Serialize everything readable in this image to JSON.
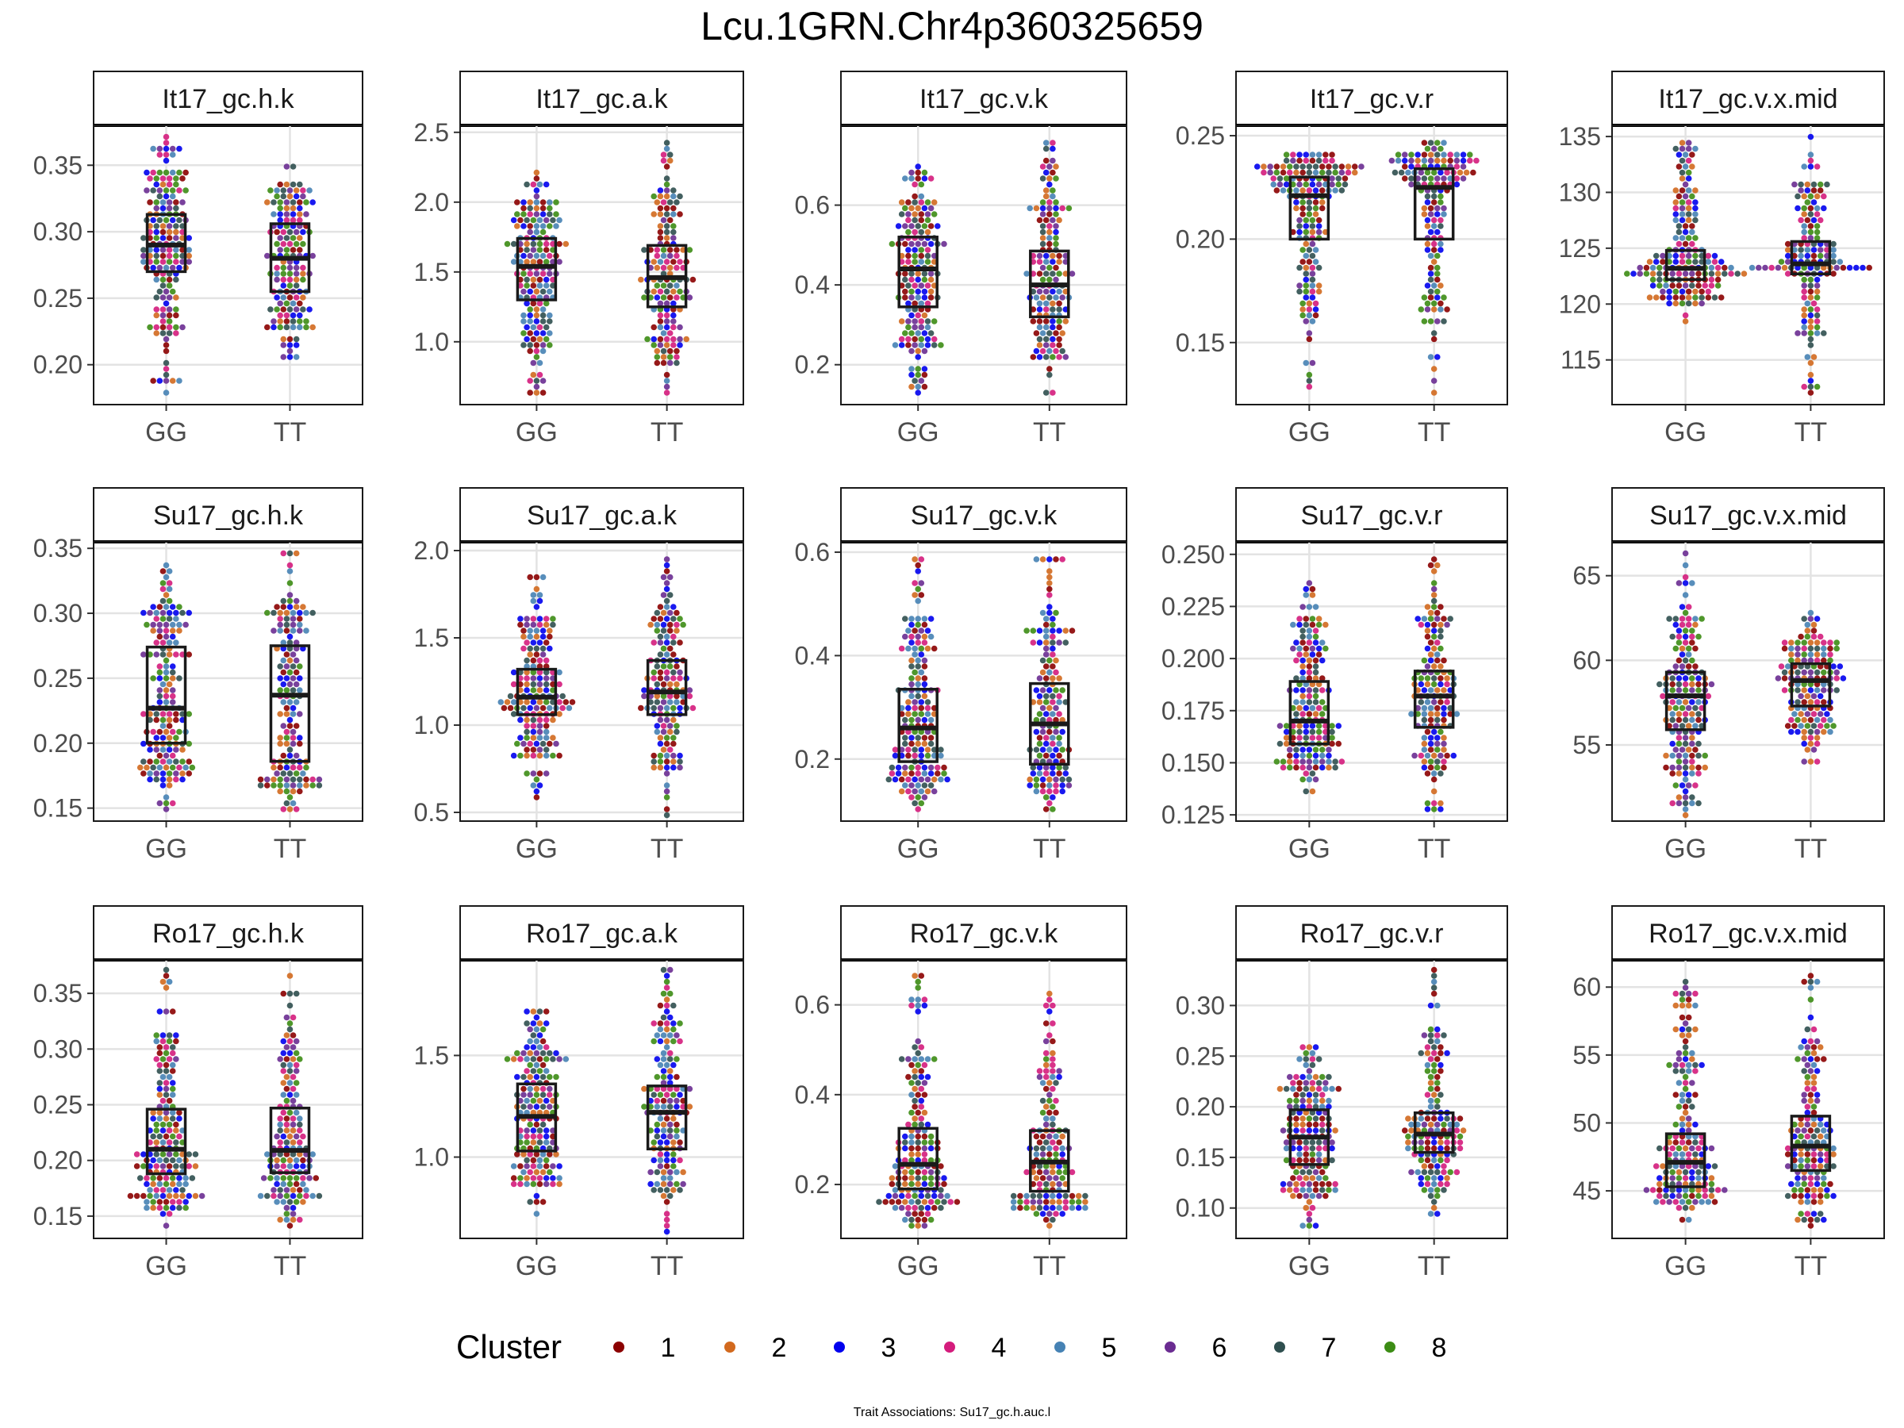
{
  "title": "Lcu.1GRN.Chr4p360325659",
  "caption": "Trait Associations: Su17_gc.h.auc.l",
  "legend": {
    "title": "Cluster",
    "items": [
      {
        "label": "1",
        "color": "#8B0000"
      },
      {
        "label": "2",
        "color": "#D2691E"
      },
      {
        "label": "3",
        "color": "#0000EE"
      },
      {
        "label": "4",
        "color": "#D41C7C"
      },
      {
        "label": "5",
        "color": "#4682B4"
      },
      {
        "label": "6",
        "color": "#6A2C91"
      },
      {
        "label": "7",
        "color": "#2F4F4F"
      },
      {
        "label": "8",
        "color": "#3C8C14"
      }
    ]
  },
  "chart_data": [
    {
      "type": "scatter",
      "title": "It17_gc.h.k",
      "categories": [
        "GG",
        "TT"
      ],
      "yticks": [
        "0.20",
        "0.25",
        "0.30",
        "0.35"
      ],
      "ylim": [
        0.17,
        0.38
      ],
      "groups": [
        {
          "name": "GG",
          "q1": 0.27,
          "median": 0.29,
          "q3": 0.313,
          "min": 0.18,
          "max": 0.373,
          "n": 165
        },
        {
          "name": "TT",
          "q1": 0.255,
          "median": 0.28,
          "q3": 0.306,
          "min": 0.205,
          "max": 0.35,
          "n": 145
        }
      ]
    },
    {
      "type": "scatter",
      "title": "It17_gc.a.k",
      "categories": [
        "GG",
        "TT"
      ],
      "yticks": [
        "1.0",
        "1.5",
        "2.0",
        "2.5"
      ],
      "ylim": [
        0.55,
        2.55
      ],
      "groups": [
        {
          "name": "GG",
          "q1": 1.3,
          "median": 1.54,
          "q3": 1.74,
          "min": 0.63,
          "max": 2.2,
          "n": 165
        },
        {
          "name": "TT",
          "q1": 1.25,
          "median": 1.46,
          "q3": 1.69,
          "min": 0.62,
          "max": 2.43,
          "n": 145
        }
      ]
    },
    {
      "type": "scatter",
      "title": "It17_gc.v.k",
      "categories": [
        "GG",
        "TT"
      ],
      "yticks": [
        "0.2",
        "0.4",
        "0.6"
      ],
      "ylim": [
        0.1,
        0.8
      ],
      "groups": [
        {
          "name": "GG",
          "q1": 0.345,
          "median": 0.44,
          "q3": 0.52,
          "min": 0.13,
          "max": 0.7,
          "n": 165
        },
        {
          "name": "TT",
          "q1": 0.32,
          "median": 0.4,
          "q3": 0.485,
          "min": 0.13,
          "max": 0.76,
          "n": 145
        }
      ]
    },
    {
      "type": "scatter",
      "title": "It17_gc.v.r",
      "categories": [
        "GG",
        "TT"
      ],
      "yticks": [
        "0.15",
        "0.20",
        "0.25"
      ],
      "ylim": [
        0.12,
        0.255
      ],
      "groups": [
        {
          "name": "GG",
          "q1": 0.2,
          "median": 0.221,
          "q3": 0.23,
          "min": 0.13,
          "max": 0.242,
          "n": 165
        },
        {
          "name": "TT",
          "q1": 0.2,
          "median": 0.225,
          "q3": 0.234,
          "min": 0.125,
          "max": 0.246,
          "n": 145
        }
      ]
    },
    {
      "type": "scatter",
      "title": "It17_gc.v.x.mid",
      "categories": [
        "GG",
        "TT"
      ],
      "yticks": [
        "115",
        "120",
        "125",
        "130",
        "135"
      ],
      "ylim": [
        111,
        136
      ],
      "groups": [
        {
          "name": "GG",
          "q1": 122.2,
          "median": 123.2,
          "q3": 124.8,
          "min": 118.5,
          "max": 134.5,
          "n": 165
        },
        {
          "name": "TT",
          "q1": 122.7,
          "median": 123.6,
          "q3": 125.6,
          "min": 112.2,
          "max": 134.8,
          "n": 145
        }
      ]
    },
    {
      "type": "scatter",
      "title": "Su17_gc.h.k",
      "categories": [
        "GG",
        "TT"
      ],
      "yticks": [
        "0.15",
        "0.20",
        "0.25",
        "0.30",
        "0.35"
      ],
      "ylim": [
        0.14,
        0.355
      ],
      "groups": [
        {
          "name": "GG",
          "q1": 0.2,
          "median": 0.227,
          "q3": 0.274,
          "min": 0.15,
          "max": 0.337,
          "n": 165
        },
        {
          "name": "TT",
          "q1": 0.186,
          "median": 0.237,
          "q3": 0.275,
          "min": 0.148,
          "max": 0.346,
          "n": 145
        }
      ]
    },
    {
      "type": "scatter",
      "title": "Su17_gc.a.k",
      "categories": [
        "GG",
        "TT"
      ],
      "yticks": [
        "0.5",
        "1.0",
        "1.5",
        "2.0"
      ],
      "ylim": [
        0.45,
        2.05
      ],
      "groups": [
        {
          "name": "GG",
          "q1": 1.06,
          "median": 1.16,
          "q3": 1.32,
          "min": 0.6,
          "max": 1.86,
          "n": 165
        },
        {
          "name": "TT",
          "q1": 1.06,
          "median": 1.19,
          "q3": 1.37,
          "min": 0.49,
          "max": 1.95,
          "n": 145
        }
      ]
    },
    {
      "type": "scatter",
      "title": "Su17_gc.v.k",
      "categories": [
        "GG",
        "TT"
      ],
      "yticks": [
        "0.2",
        "0.4",
        "0.6"
      ],
      "ylim": [
        0.08,
        0.62
      ],
      "groups": [
        {
          "name": "GG",
          "q1": 0.195,
          "median": 0.26,
          "q3": 0.335,
          "min": 0.1,
          "max": 0.59,
          "n": 165
        },
        {
          "name": "TT",
          "q1": 0.19,
          "median": 0.268,
          "q3": 0.346,
          "min": 0.1,
          "max": 0.59,
          "n": 145
        }
      ]
    },
    {
      "type": "scatter",
      "title": "Su17_gc.v.r",
      "categories": [
        "GG",
        "TT"
      ],
      "yticks": [
        "0.125",
        "0.150",
        "0.175",
        "0.200",
        "0.225",
        "0.250"
      ],
      "ylim": [
        0.122,
        0.256
      ],
      "groups": [
        {
          "name": "GG",
          "q1": 0.159,
          "median": 0.17,
          "q3": 0.189,
          "min": 0.136,
          "max": 0.235,
          "n": 165
        },
        {
          "name": "TT",
          "q1": 0.167,
          "median": 0.182,
          "q3": 0.194,
          "min": 0.128,
          "max": 0.247,
          "n": 145
        }
      ]
    },
    {
      "type": "scatter",
      "title": "Su17_gc.v.x.mid",
      "categories": [
        "GG",
        "TT"
      ],
      "yticks": [
        "55",
        "60",
        "65"
      ],
      "ylim": [
        50.5,
        67
      ],
      "groups": [
        {
          "name": "GG",
          "q1": 55.9,
          "median": 57.9,
          "q3": 59.3,
          "min": 51,
          "max": 66.2,
          "n": 165
        },
        {
          "name": "TT",
          "q1": 57.3,
          "median": 58.8,
          "q3": 59.8,
          "min": 54.1,
          "max": 62.7,
          "n": 145
        }
      ]
    },
    {
      "type": "scatter",
      "title": "Ro17_gc.h.k",
      "categories": [
        "GG",
        "TT"
      ],
      "yticks": [
        "0.15",
        "0.20",
        "0.25",
        "0.30",
        "0.35"
      ],
      "ylim": [
        0.13,
        0.38
      ],
      "groups": [
        {
          "name": "GG",
          "q1": 0.188,
          "median": 0.21,
          "q3": 0.246,
          "min": 0.143,
          "max": 0.373,
          "n": 165
        },
        {
          "name": "TT",
          "q1": 0.189,
          "median": 0.209,
          "q3": 0.247,
          "min": 0.141,
          "max": 0.366,
          "n": 145
        }
      ]
    },
    {
      "type": "scatter",
      "title": "Ro17_gc.a.k",
      "categories": [
        "GG",
        "TT"
      ],
      "yticks": [
        "1.0",
        "1.5"
      ],
      "ylim": [
        0.6,
        1.97
      ],
      "groups": [
        {
          "name": "GG",
          "q1": 1.03,
          "median": 1.2,
          "q3": 1.36,
          "min": 0.73,
          "max": 1.73,
          "n": 165
        },
        {
          "name": "TT",
          "q1": 1.04,
          "median": 1.22,
          "q3": 1.35,
          "min": 0.63,
          "max": 1.93,
          "n": 145
        }
      ]
    },
    {
      "type": "scatter",
      "title": "Ro17_gc.v.k",
      "categories": [
        "GG",
        "TT"
      ],
      "yticks": [
        "0.2",
        "0.4",
        "0.6"
      ],
      "ylim": [
        0.08,
        0.7
      ],
      "groups": [
        {
          "name": "GG",
          "q1": 0.19,
          "median": 0.245,
          "q3": 0.325,
          "min": 0.11,
          "max": 0.67,
          "n": 165
        },
        {
          "name": "TT",
          "q1": 0.185,
          "median": 0.25,
          "q3": 0.32,
          "min": 0.11,
          "max": 0.63,
          "n": 145
        }
      ]
    },
    {
      "type": "scatter",
      "title": "Ro17_gc.v.r",
      "categories": [
        "GG",
        "TT"
      ],
      "yticks": [
        "0.10",
        "0.15",
        "0.20",
        "0.25",
        "0.30"
      ],
      "ylim": [
        0.07,
        0.345
      ],
      "groups": [
        {
          "name": "GG",
          "q1": 0.143,
          "median": 0.17,
          "q3": 0.197,
          "min": 0.08,
          "max": 0.258,
          "n": 165
        },
        {
          "name": "TT",
          "q1": 0.155,
          "median": 0.173,
          "q3": 0.194,
          "min": 0.094,
          "max": 0.334,
          "n": 145
        }
      ]
    },
    {
      "type": "scatter",
      "title": "Ro17_gc.v.x.mid",
      "categories": [
        "GG",
        "TT"
      ],
      "yticks": [
        "45",
        "50",
        "55",
        "60"
      ],
      "ylim": [
        41.5,
        62
      ],
      "groups": [
        {
          "name": "GG",
          "q1": 45.3,
          "median": 47.1,
          "q3": 49.2,
          "min": 42.9,
          "max": 60.5,
          "n": 165
        },
        {
          "name": "TT",
          "q1": 46.5,
          "median": 48.3,
          "q3": 50.5,
          "min": 42.3,
          "max": 61.0,
          "n": 145
        }
      ]
    }
  ]
}
